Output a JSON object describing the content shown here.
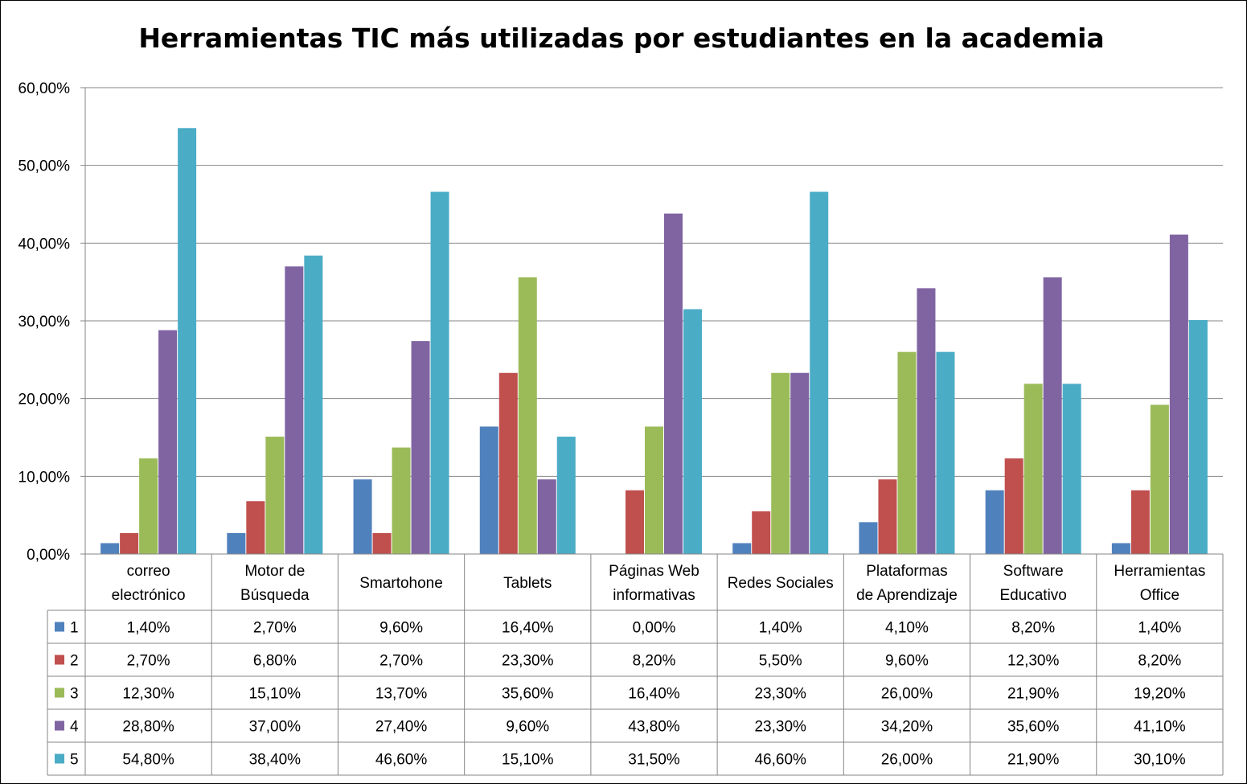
{
  "chart_data": {
    "type": "bar",
    "title": "Herramientas TIC más utilizadas por estudiantes en la academia",
    "xlabel": "",
    "ylabel": "",
    "ylim": [
      0,
      60
    ],
    "yticks": [
      "0,00%",
      "10,00%",
      "20,00%",
      "30,00%",
      "40,00%",
      "50,00%",
      "60,00%"
    ],
    "grid": true,
    "legend": "data-table",
    "categories": [
      [
        "correo",
        "electrónico"
      ],
      [
        "Motor de",
        "Búsqueda"
      ],
      [
        "Smartohone"
      ],
      [
        "Tablets"
      ],
      [
        "Páginas Web",
        "informativas"
      ],
      [
        "Redes Sociales"
      ],
      [
        "Plataformas",
        "de Aprendizaje"
      ],
      [
        "Software",
        "Educativo"
      ],
      [
        "Herramientas",
        "Office"
      ]
    ],
    "series": [
      {
        "name": "1",
        "color": "#4F81BD",
        "values": [
          1.4,
          2.7,
          9.6,
          16.4,
          0.0,
          1.4,
          4.1,
          8.2,
          1.4
        ],
        "labels": [
          "1,40%",
          "2,70%",
          "9,60%",
          "16,40%",
          "0,00%",
          "1,40%",
          "4,10%",
          "8,20%",
          "1,40%"
        ]
      },
      {
        "name": "2",
        "color": "#C0504D",
        "values": [
          2.7,
          6.8,
          2.7,
          23.3,
          8.2,
          5.5,
          9.6,
          12.3,
          8.2
        ],
        "labels": [
          "2,70%",
          "6,80%",
          "2,70%",
          "23,30%",
          "8,20%",
          "5,50%",
          "9,60%",
          "12,30%",
          "8,20%"
        ]
      },
      {
        "name": "3",
        "color": "#9BBB59",
        "values": [
          12.3,
          15.1,
          13.7,
          35.6,
          16.4,
          23.3,
          26.0,
          21.9,
          19.2
        ],
        "labels": [
          "12,30%",
          "15,10%",
          "13,70%",
          "35,60%",
          "16,40%",
          "23,30%",
          "26,00%",
          "21,90%",
          "19,20%"
        ]
      },
      {
        "name": "4",
        "color": "#8064A2",
        "values": [
          28.8,
          37.0,
          27.4,
          9.6,
          43.8,
          23.3,
          34.2,
          35.6,
          41.1
        ],
        "labels": [
          "28,80%",
          "37,00%",
          "27,40%",
          "9,60%",
          "43,80%",
          "23,30%",
          "34,20%",
          "35,60%",
          "41,10%"
        ]
      },
      {
        "name": "5",
        "color": "#4BACC6",
        "values": [
          54.8,
          38.4,
          46.6,
          15.1,
          31.5,
          46.6,
          26.0,
          21.9,
          30.1
        ],
        "labels": [
          "54,80%",
          "38,40%",
          "46,60%",
          "15,10%",
          "31,50%",
          "46,60%",
          "26,00%",
          "21,90%",
          "30,10%"
        ]
      }
    ]
  }
}
